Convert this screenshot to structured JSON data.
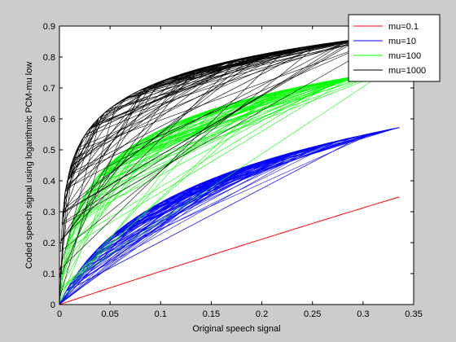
{
  "chart_data": {
    "type": "line",
    "title": "",
    "xlabel": "Original speech signal",
    "ylabel": "Coded speech signal using logarithmic PCM-mu low",
    "xlim": [
      0,
      0.35
    ],
    "ylim": [
      0,
      0.9
    ],
    "xticks": [
      "0",
      "0.05",
      "0.1",
      "0.15",
      "0.2",
      "0.25",
      "0.3",
      "0.35"
    ],
    "yticks": [
      "0",
      "0.1",
      "0.2",
      "0.3",
      "0.4",
      "0.5",
      "0.6",
      "0.7",
      "0.8",
      "0.9"
    ],
    "grid": false,
    "legend_position": "top-right",
    "xmax_signal": 0.336,
    "series": [
      {
        "name": "mu=0.1",
        "mu": 0.1,
        "color": "#ff0000",
        "x": [
          0,
          0.05,
          0.1,
          0.15,
          0.2,
          0.25,
          0.3,
          0.336
        ],
        "values": [
          0,
          0.052,
          0.104,
          0.155,
          0.207,
          0.259,
          0.311,
          0.348
        ]
      },
      {
        "name": "mu=10",
        "mu": 10,
        "color": "#0000ff",
        "x": [
          0,
          0.05,
          0.1,
          0.15,
          0.2,
          0.25,
          0.3,
          0.336
        ],
        "values": [
          0,
          0.151,
          0.261,
          0.349,
          0.421,
          0.482,
          0.536,
          0.572
        ]
      },
      {
        "name": "mu=100",
        "mu": 100,
        "color": "#00ff00",
        "x": [
          0,
          0.05,
          0.1,
          0.15,
          0.2,
          0.25,
          0.3,
          0.336
        ],
        "values": [
          0,
          0.386,
          0.518,
          0.598,
          0.655,
          0.7,
          0.737,
          0.76
        ]
      },
      {
        "name": "mu=1000",
        "mu": 1000,
        "color": "#000000",
        "x": [
          0,
          0.05,
          0.1,
          0.15,
          0.2,
          0.25,
          0.3,
          0.336
        ],
        "values": [
          0,
          0.599,
          0.699,
          0.757,
          0.798,
          0.831,
          0.857,
          0.874
        ]
      }
    ]
  }
}
